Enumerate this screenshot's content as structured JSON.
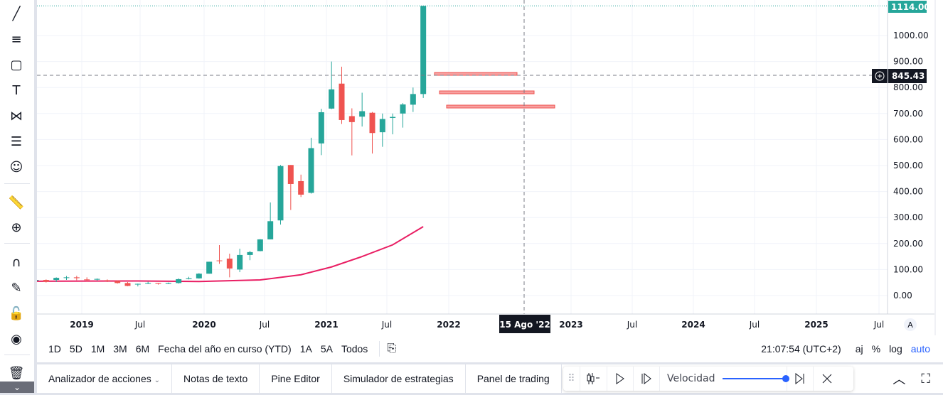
{
  "left_toolbar": {
    "icons": [
      "trend-line-icon",
      "fib-icon",
      "rectangle-icon",
      "text-icon",
      "pattern-icon",
      "forecast-icon",
      "emoji-icon",
      "ruler-icon",
      "zoom-in-icon",
      "magnet-icon",
      "lock-drawing-icon",
      "lock-icon",
      "eye-icon",
      "trash-icon",
      "chevron-down-icon"
    ]
  },
  "price_axis": {
    "ticks": [
      "1000.00",
      "900.00",
      "800.00",
      "700.00",
      "600.00",
      "500.00",
      "400.00",
      "300.00",
      "200.00",
      "100.00",
      "0.00"
    ],
    "last_price": "1114.00",
    "crosshair_price": "845.43",
    "last_price_color": "#26a69a"
  },
  "time_axis": {
    "ticks": [
      "2019",
      "Jul",
      "2020",
      "Jul",
      "2021",
      "Jul",
      "2022",
      "2023",
      "Jul",
      "2024",
      "Jul",
      "2025",
      "Jul"
    ],
    "crosshair_date": "15 Ago '22",
    "auto_label": "A"
  },
  "range_bar": {
    "ranges": [
      "1D",
      "5D",
      "1M",
      "3M",
      "6M",
      "Fecha del año en curso (YTD)",
      "1A",
      "5A",
      "Todos"
    ],
    "time": "21:07:54 (UTC+2)",
    "aj": "aj",
    "pct": "%",
    "log": "log",
    "auto": "auto"
  },
  "bottom_bar": {
    "tabs": [
      "Analizador de acciones",
      "Notas de texto",
      "Pine Editor",
      "Simulador de estrategias",
      "Panel de trading"
    ]
  },
  "replay": {
    "speed_label": "Velocidad",
    "speed": 1.0
  },
  "chart_data": {
    "type": "candlestick",
    "colors": {
      "up": "#26a69a",
      "down": "#ef5350",
      "ma": "#e91e63"
    },
    "ylim": [
      -60,
      1130
    ],
    "candles": [
      [
        "2018-08",
        60,
        76,
        58,
        60
      ],
      [
        "2018-09",
        60,
        62,
        50,
        53
      ],
      [
        "2018-10",
        60,
        70,
        52,
        68
      ],
      [
        "2018-11",
        68,
        75,
        60,
        70
      ],
      [
        "2018-12",
        70,
        76,
        59,
        67
      ],
      [
        "2019-01",
        62,
        70,
        54,
        61
      ],
      [
        "2019-02",
        61,
        66,
        57,
        64
      ],
      [
        "2019-03",
        59,
        62,
        52,
        56
      ],
      [
        "2019-04",
        56,
        58,
        46,
        48
      ],
      [
        "2019-05",
        48,
        52,
        36,
        37
      ],
      [
        "2019-06",
        45,
        46,
        35,
        45
      ],
      [
        "2019-07",
        46,
        53,
        44,
        48
      ],
      [
        "2019-08",
        48,
        48,
        42,
        45
      ],
      [
        "2019-09",
        45,
        50,
        44,
        48
      ],
      [
        "2019-10",
        48,
        66,
        46,
        63
      ],
      [
        "2019-11",
        63,
        72,
        62,
        66
      ],
      [
        "2019-12",
        66,
        86,
        65,
        84
      ],
      [
        "2020-01",
        84,
        130,
        84,
        130
      ],
      [
        "2020-02",
        135,
        194,
        122,
        134
      ],
      [
        "2020-03",
        142,
        161,
        70,
        104
      ],
      [
        "2020-04",
        100,
        180,
        90,
        156
      ],
      [
        "2020-05",
        156,
        172,
        136,
        167
      ],
      [
        "2020-06",
        171,
        217,
        170,
        216
      ],
      [
        "2020-07",
        216,
        358,
        216,
        286
      ],
      [
        "2020-08",
        289,
        502,
        273,
        498
      ],
      [
        "2020-09",
        502,
        502,
        329,
        429
      ],
      [
        "2020-10",
        440,
        465,
        379,
        388
      ],
      [
        "2020-11",
        395,
        607,
        392,
        567
      ],
      [
        "2020-12",
        585,
        718,
        540,
        705
      ],
      [
        "2021-01",
        719,
        900,
        717,
        793
      ],
      [
        "2021-02",
        815,
        880,
        660,
        675
      ],
      [
        "2021-03",
        690,
        720,
        539,
        667
      ],
      [
        "2021-04",
        688,
        780,
        650,
        709
      ],
      [
        "2021-05",
        703,
        706,
        546,
        625
      ],
      [
        "2021-06",
        628,
        700,
        572,
        679
      ],
      [
        "2021-07",
        683,
        700,
        620,
        687
      ],
      [
        "2021-08",
        700,
        740,
        646,
        735
      ],
      [
        "2021-09",
        734,
        800,
        706,
        775
      ],
      [
        "2021-10",
        775,
        1114,
        760,
        1114
      ]
    ],
    "moving_average": [
      [
        "2018-08",
        55
      ],
      [
        "2019-06",
        56
      ],
      [
        "2019-12",
        54
      ],
      [
        "2020-06",
        60
      ],
      [
        "2020-10",
        80
      ],
      [
        "2021-01",
        110
      ],
      [
        "2021-04",
        150
      ],
      [
        "2021-07",
        195
      ],
      [
        "2021-10",
        265
      ]
    ]
  }
}
